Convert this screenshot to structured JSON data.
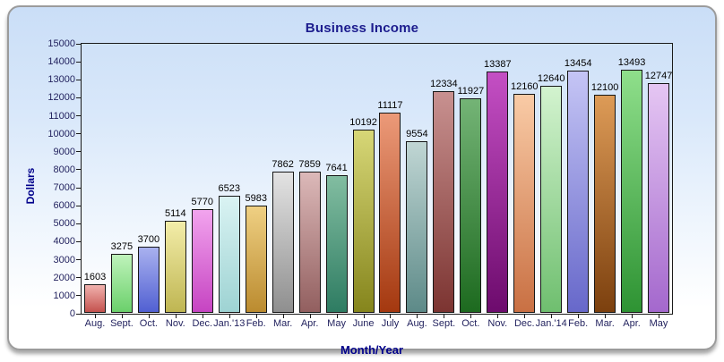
{
  "chart_data": {
    "type": "bar",
    "title": "Business Income",
    "xlabel": "Month/Year",
    "ylabel": "Dollars",
    "ylim": [
      0,
      15000
    ],
    "ytick_step": 1000,
    "yticks": [
      0,
      1000,
      2000,
      3000,
      4000,
      5000,
      6000,
      7000,
      8000,
      9000,
      10000,
      11000,
      12000,
      13000,
      14000,
      15000
    ],
    "grid": "off",
    "legend": "none",
    "value_labels_shown": true,
    "categories": [
      "Aug.",
      "Sept.",
      "Oct.",
      "Nov.",
      "Dec.",
      "Jan.'13",
      "Feb.",
      "Mar.",
      "Apr.",
      "May",
      "June",
      "July",
      "Aug.",
      "Sept.",
      "Oct.",
      "Nov.",
      "Dec.",
      "Jan.'14",
      "Feb.",
      "Mar.",
      "Apr.",
      "May"
    ],
    "values": [
      1603,
      3275,
      3700,
      5114,
      5770,
      6523,
      5983,
      7862,
      7859,
      7641,
      10192,
      11117,
      9554,
      12334,
      11927,
      13387,
      12160,
      12640,
      13454,
      12100,
      13493,
      12747
    ],
    "bar_gradients": [
      [
        "#f1b2ae",
        "#c4524e"
      ],
      [
        "#bff3bb",
        "#6bd06b"
      ],
      [
        "#a9b1ef",
        "#5160d2"
      ],
      [
        "#f3eda9",
        "#bfb652"
      ],
      [
        "#f2a4ee",
        "#c644c2"
      ],
      [
        "#daf3f3",
        "#9ed3d3"
      ],
      [
        "#efd083",
        "#bb8b2f"
      ],
      [
        "#e3e3e3",
        "#8f8f8f"
      ],
      [
        "#dcb9b9",
        "#925f5f"
      ],
      [
        "#82bda1",
        "#2e7c62"
      ],
      [
        "#d7d777",
        "#85851c"
      ],
      [
        "#ec9a79",
        "#a4380f"
      ],
      [
        "#c0d6d4",
        "#5d8a88"
      ],
      [
        "#c89190",
        "#7c3431"
      ],
      [
        "#74b476",
        "#1d6a1f"
      ],
      [
        "#c44fc4",
        "#6d0b6d"
      ],
      [
        "#f9cba6",
        "#c97043"
      ],
      [
        "#d3f3cf",
        "#6fbf6f"
      ],
      [
        "#c5c5f5",
        "#6768ca"
      ],
      [
        "#dd9b57",
        "#7c400e"
      ],
      [
        "#8fdf8b",
        "#2e9333"
      ],
      [
        "#e5c6f3",
        "#a468cd"
      ]
    ]
  },
  "colors": {
    "title": "#1c1c8e",
    "axis_title": "#00008b",
    "tick_label": "#23235f",
    "value_label": "#000000",
    "plot_border": "#1a1a1a",
    "panel_border": "#9b9b9b",
    "background_top": "#cadef7",
    "background_bottom": "#ffffff"
  }
}
